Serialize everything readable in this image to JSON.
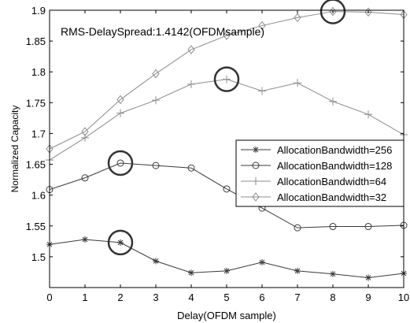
{
  "chart_data": {
    "type": "line",
    "title": "",
    "annotation": "RMS-DelaySpread:1.4142(OFDMsample)",
    "xlabel": "Delay(OFDM sample)",
    "ylabel": "Normalized Capacity",
    "xlim": [
      0,
      10
    ],
    "ylim": [
      1.45,
      1.9
    ],
    "xticks": [
      0,
      1,
      2,
      3,
      4,
      5,
      6,
      7,
      8,
      9,
      10
    ],
    "yticks": [
      1.5,
      1.55,
      1.6,
      1.65,
      1.7,
      1.75,
      1.8,
      1.85,
      1.9
    ],
    "grid": false,
    "legend_position": "right",
    "x": [
      0,
      1,
      2,
      3,
      4,
      5,
      6,
      7,
      8,
      9,
      10
    ],
    "series": [
      {
        "name": "AllocationBandwidth=256",
        "marker": "star",
        "color": "#3a3a3a",
        "values": [
          1.52,
          1.528,
          1.523,
          1.493,
          1.474,
          1.477,
          1.491,
          1.477,
          1.472,
          1.466,
          1.473
        ]
      },
      {
        "name": "AllocationBandwidth=128",
        "marker": "circle",
        "color": "#3a3a3a",
        "values": [
          1.609,
          1.628,
          1.652,
          1.648,
          1.644,
          1.61,
          1.579,
          1.547,
          1.549,
          1.549,
          1.551
        ]
      },
      {
        "name": "AllocationBandwidth=64",
        "marker": "plus",
        "color": "#8c8c8c",
        "values": [
          1.657,
          1.693,
          1.733,
          1.754,
          1.78,
          1.788,
          1.769,
          1.782,
          1.752,
          1.731,
          1.698
        ]
      },
      {
        "name": "AllocationBandwidth=32",
        "marker": "diamond",
        "color": "#8c8c8c",
        "values": [
          1.675,
          1.703,
          1.755,
          1.797,
          1.836,
          1.859,
          1.875,
          1.888,
          1.898,
          1.897,
          1.893
        ]
      }
    ],
    "highlighted_points": [
      {
        "series": "AllocationBandwidth=256",
        "x": 2,
        "y": 1.523
      },
      {
        "series": "AllocationBandwidth=128",
        "x": 2,
        "y": 1.652
      },
      {
        "series": "AllocationBandwidth=64",
        "x": 5,
        "y": 1.788
      },
      {
        "series": "AllocationBandwidth=32",
        "x": 8,
        "y": 1.898
      }
    ]
  }
}
